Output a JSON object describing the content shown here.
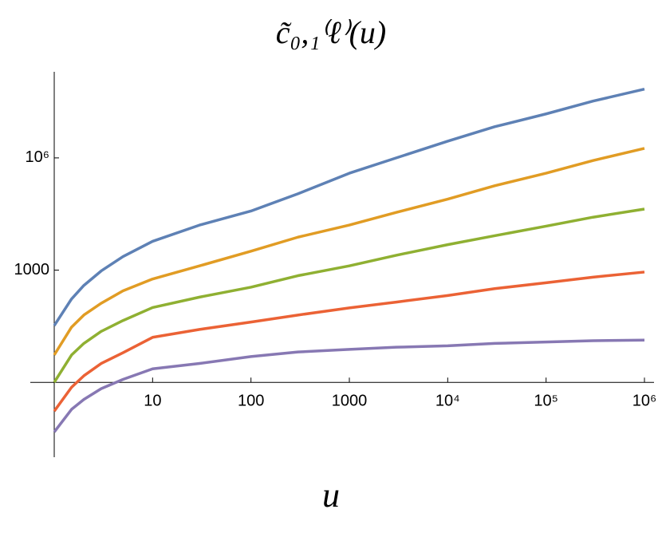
{
  "chart_data": {
    "type": "line",
    "title": "c̃₀,₁⁽ℓ⁾(u)",
    "x_label": "u",
    "log_x": true,
    "log_y": true,
    "xlim": [
      1,
      1000000
    ],
    "ylim": [
      0.01,
      200000000
    ],
    "xticks": [
      10,
      100,
      1000,
      {
        "value": 10000,
        "label": "10⁴"
      },
      {
        "value": 100000,
        "label": "10⁵"
      },
      {
        "value": 1000000,
        "label": "10⁶"
      }
    ],
    "yticks": [
      1000,
      {
        "value": 1000000,
        "label": "10⁶"
      }
    ],
    "x": [
      1,
      1.5,
      2,
      3,
      5,
      10,
      30,
      100,
      300,
      1000,
      3000,
      10000,
      30000,
      100000,
      300000,
      1000000
    ],
    "series": [
      {
        "color": "#5e81b5",
        "values": [
          33,
          170,
          390,
          950,
          2300,
          5900,
          16000,
          38000,
          110000,
          390000,
          1000000,
          2800000,
          6800000,
          15000000,
          33000000,
          69000000
        ]
      },
      {
        "color": "#e19c24",
        "values": [
          5.4,
          30,
          63,
          130,
          280,
          580,
          1300,
          3200,
          7600,
          16000,
          35000,
          79000,
          180000,
          390000,
          850000,
          1800000
        ]
      },
      {
        "color": "#8fb032",
        "values": [
          1,
          5.4,
          11,
          23,
          45,
          100,
          190,
          350,
          710,
          1300,
          2500,
          4800,
          8300,
          15000,
          26000,
          43000
        ]
      },
      {
        "color": "#eb6235",
        "values": [
          0.17,
          0.74,
          1.5,
          3.2,
          6.2,
          16,
          26,
          41,
          63,
          98,
          140,
          210,
          320,
          460,
          650,
          890
        ]
      },
      {
        "color": "#8778b3",
        "values": [
          0.047,
          0.19,
          0.35,
          0.68,
          1.2,
          2.3,
          3.2,
          4.9,
          6.5,
          7.6,
          8.7,
          9.5,
          11,
          12,
          13,
          13.5
        ]
      }
    ]
  }
}
